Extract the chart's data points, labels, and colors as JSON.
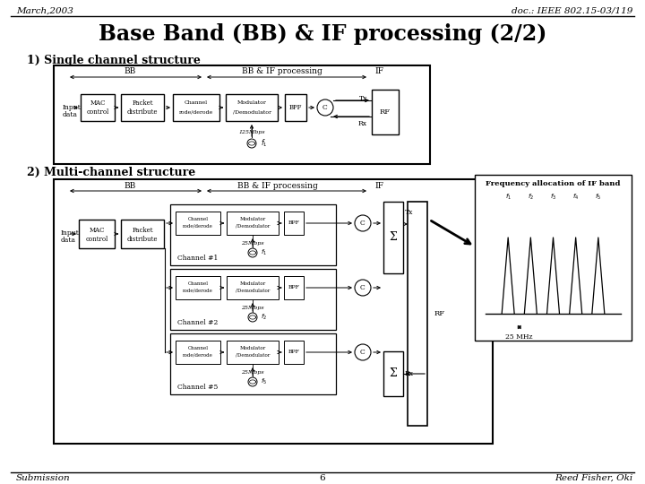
{
  "title": "Base Band (BB) & IF processing (2/2)",
  "header_left": "March,2003",
  "header_right": "doc.: IEEE 802.15-03/119",
  "footer_left": "Submission",
  "footer_center": "6",
  "footer_right": "Reed Fisher, Oki",
  "section1": "1) Single channel structure",
  "section2": "2) Multi-channel structure",
  "freq_label": "Frequency allocation of IF band",
  "bg_color": "#ffffff"
}
